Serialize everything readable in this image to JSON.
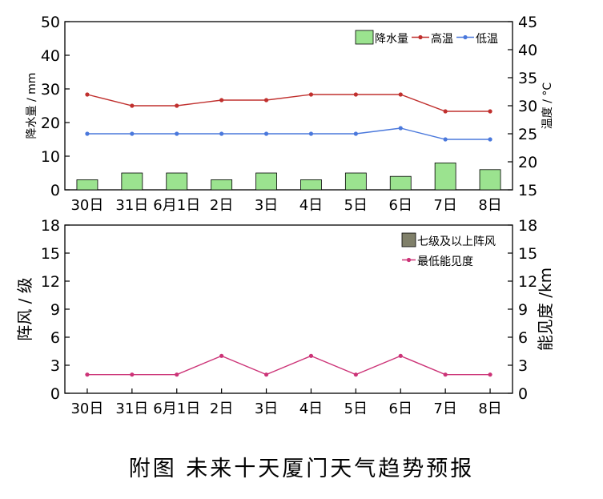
{
  "caption": "附图  未来十天厦门天气趋势预报",
  "chart_data": [
    {
      "type": "bar+line",
      "categories": [
        "30日",
        "31日",
        "6月1日",
        "2日",
        "3日",
        "4日",
        "5日",
        "6日",
        "7日",
        "8日"
      ],
      "ylabel_left": "降水量 / mm",
      "ylabel_right": "温度 / °C",
      "ylim_left": [
        0,
        50
      ],
      "yticks_left": [
        0,
        10,
        20,
        30,
        40,
        50
      ],
      "ylim_right": [
        15,
        45
      ],
      "yticks_right": [
        15,
        20,
        25,
        30,
        35,
        40,
        45
      ],
      "legend_placement": "top-right",
      "series": [
        {
          "name": "降水量",
          "kind": "bar",
          "axis": "left",
          "color": "#9be38f",
          "values": [
            3,
            5,
            5,
            3,
            5,
            3,
            5,
            4,
            8,
            6
          ]
        },
        {
          "name": "高温",
          "kind": "line",
          "axis": "right",
          "color": "#c0302e",
          "values": [
            32,
            30,
            30,
            31,
            31,
            32,
            32,
            32,
            29,
            29
          ]
        },
        {
          "name": "低温",
          "kind": "line",
          "axis": "right",
          "color": "#4a78dc",
          "values": [
            25,
            25,
            25,
            25,
            25,
            25,
            25,
            26,
            24,
            24
          ]
        }
      ]
    },
    {
      "type": "bar+line",
      "categories": [
        "30日",
        "31日",
        "6月1日",
        "2日",
        "3日",
        "4日",
        "5日",
        "6日",
        "7日",
        "8日"
      ],
      "ylabel_left": "阵风 / 级",
      "ylabel_right": "能见度 /km",
      "ylim_left": [
        0,
        18
      ],
      "yticks_left": [
        0,
        3,
        6,
        9,
        12,
        15,
        18
      ],
      "ylim_right": [
        0,
        18
      ],
      "yticks_right": [
        0,
        3,
        6,
        9,
        12,
        15,
        18
      ],
      "legend_placement": "top-right",
      "series": [
        {
          "name": "七级及以上阵风",
          "kind": "bar",
          "axis": "left",
          "color": "#80806a",
          "values": [
            0,
            0,
            0,
            0,
            0,
            0,
            0,
            0,
            0,
            0
          ]
        },
        {
          "name": "最低能见度",
          "kind": "line",
          "axis": "right",
          "color": "#cc3377",
          "values": [
            2,
            2,
            2,
            4,
            2,
            4,
            2,
            4,
            2,
            2
          ]
        }
      ]
    }
  ]
}
